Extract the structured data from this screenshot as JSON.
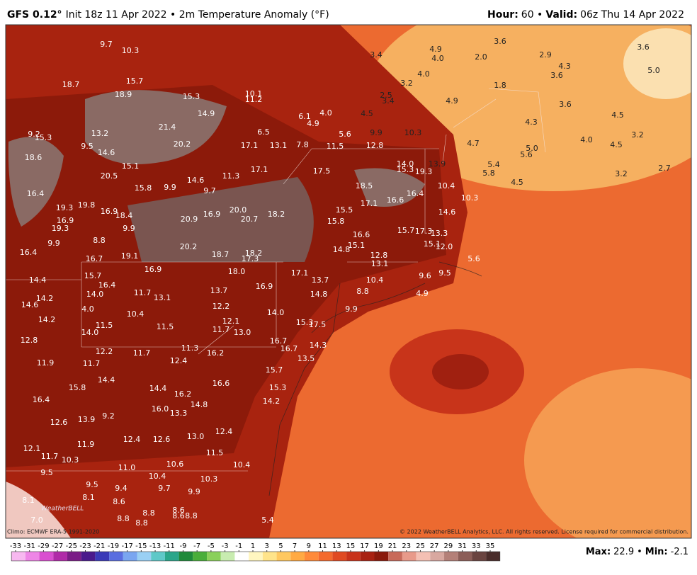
{
  "header": {
    "model": "GFS 0.12°",
    "description": "Init 18z 11 Apr 2022 • 2m Temperature Anomaly (°F)",
    "hour_label": "Hour:",
    "hour": "60 •",
    "valid_label": "Valid:",
    "valid": "06z Thu 14 Apr 2022"
  },
  "footer": {
    "climo": "Climo: ECMWF ERA-5 1991-2020",
    "copyright": "© 2022 WeatherBELL Analytics, LLC. All rights reserved. License required for commercial distribution.",
    "max_label": "Max:",
    "max": 22.9,
    "separator": "•",
    "min_label": "Min:",
    "min": -2.1,
    "logo": "WeatherBELL"
  },
  "colorbar": {
    "ticks": [
      -33,
      -31,
      -29,
      -27,
      -25,
      -23,
      -21,
      -19,
      -17,
      -15,
      -13,
      -11,
      -9,
      -7,
      -5,
      -3,
      -1,
      1,
      3,
      5,
      7,
      9,
      11,
      13,
      15,
      17,
      19,
      21,
      23,
      25,
      27,
      29,
      31,
      33,
      35
    ],
    "colors": [
      "#f7b8f0",
      "#ee86e6",
      "#d94fd0",
      "#b02aa8",
      "#7a1c86",
      "#4a1a8c",
      "#3a3ab8",
      "#5a6ee0",
      "#7aa6f0",
      "#9ad0f4",
      "#5fc8c8",
      "#2aa68a",
      "#1f8a3a",
      "#4aae3a",
      "#8ad05a",
      "#c8ecb0",
      "#ffffff",
      "#fff6c0",
      "#ffe48a",
      "#ffc860",
      "#ffaa44",
      "#ff8a3a",
      "#f46a2e",
      "#e04a22",
      "#c8321a",
      "#a82212",
      "#8a1a0c",
      "#c86a5a",
      "#e89a8a",
      "#f4c0b4",
      "#d8a8a0",
      "#b48078",
      "#8c5e58",
      "#6a4440",
      "#4a2c2a"
    ]
  },
  "map_labels": [
    "9.7",
    "10.3",
    "18.7",
    "15.7",
    "18.9",
    "15.3",
    "10.1",
    "11.2",
    "14.9",
    "21.4",
    "20.2",
    "17.1",
    "13.1",
    "7.8",
    "11.5",
    "12.8",
    "9.9",
    "10.3",
    "6.5",
    "6.1",
    "4.0",
    "4.9",
    "5.6",
    "4.5",
    "3.4",
    "4.9",
    "4.0",
    "4.0",
    "3.2",
    "2.5",
    "3.4",
    "4.9",
    "3.6",
    "2.0",
    "1.8",
    "2.9",
    "4.3",
    "3.6",
    "3.6",
    "3.6",
    "5.0",
    "4.5",
    "4.3",
    "4.7",
    "5.0",
    "5.6",
    "5.4",
    "5.8",
    "4.0",
    "4.5",
    "3.2",
    "3.2",
    "2.7",
    "4.5",
    "10.3",
    "10.4",
    "14.6",
    "13.9",
    "14.0",
    "15.3",
    "19.3",
    "16.4",
    "16.6",
    "17.1",
    "18.5",
    "17.5",
    "15.5",
    "15.8",
    "16.6",
    "15.1",
    "14.8",
    "12.8",
    "13.1",
    "15.7",
    "17.3",
    "13.3",
    "15.1",
    "12.0",
    "5.6",
    "9.5",
    "9.6",
    "4.9",
    "8.8",
    "10.4",
    "17.1",
    "13.7",
    "14.8",
    "9.9",
    "14.0",
    "15.3",
    "17.5",
    "16.9",
    "18.0",
    "16.7",
    "16.7",
    "14.3",
    "13.5",
    "15.7",
    "15.3",
    "14.2",
    "16.2",
    "13.0",
    "12.1",
    "11.7",
    "12.2",
    "13.7",
    "11.3",
    "12.4",
    "16.6",
    "14.8",
    "16.2",
    "13.3",
    "16.0",
    "14.4",
    "11.7",
    "12.2",
    "11.5",
    "10.4",
    "11.7",
    "13.1",
    "14.0",
    "4.0",
    "11.5",
    "14.0",
    "12.8",
    "11.9",
    "11.7",
    "15.8",
    "14.4",
    "16.4",
    "12.6",
    "13.9",
    "9.2",
    "12.4",
    "12.6",
    "13.0",
    "12.4",
    "11.5",
    "10.4",
    "10.6",
    "11.0",
    "10.4",
    "10.3",
    "9.7",
    "9.9",
    "9.4",
    "9.5",
    "8.6",
    "8.1",
    "8.1",
    "9.5",
    "11.7",
    "10.3",
    "12.1",
    "11.9",
    "7.0",
    "8.8",
    "8.8",
    "8.8",
    "8.6",
    "8.6",
    "8.8",
    "5.4",
    "16.4",
    "14.4",
    "14.2",
    "14.6",
    "14.2",
    "9.9",
    "8.8",
    "16.7",
    "15.7",
    "16.4",
    "19.1",
    "16.9",
    "20.2",
    "18.7",
    "18.2",
    "17.3",
    "20.9",
    "16.9",
    "20.0",
    "20.7",
    "18.2",
    "16.9",
    "19.3",
    "16.9",
    "18.4",
    "9.9",
    "19.3",
    "19.8",
    "15.8",
    "9.9",
    "14.6",
    "9.7",
    "11.3",
    "17.1",
    "16.4",
    "18.6",
    "15.3",
    "9.5",
    "14.6",
    "15.1",
    "20.5",
    "13.2",
    "9.2"
  ]
}
